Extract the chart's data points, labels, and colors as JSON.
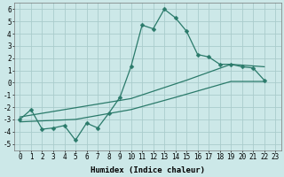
{
  "xlabel": "Humidex (Indice chaleur)",
  "background_color": "#cce8e8",
  "grid_color": "#aacccc",
  "line_color": "#2a7a6a",
  "xlim": [
    -0.5,
    23.5
  ],
  "ylim": [
    -5.5,
    6.5
  ],
  "xticks": [
    0,
    1,
    2,
    3,
    4,
    5,
    6,
    7,
    8,
    9,
    10,
    11,
    12,
    13,
    14,
    15,
    16,
    17,
    18,
    19,
    20,
    21,
    22,
    23
  ],
  "yticks": [
    -5,
    -4,
    -3,
    -2,
    -1,
    0,
    1,
    2,
    3,
    4,
    5,
    6
  ],
  "main_x": [
    0,
    1,
    2,
    3,
    4,
    5,
    6,
    7,
    8,
    9,
    10,
    11,
    12,
    13,
    14,
    15,
    16,
    17,
    18,
    19,
    20,
    21,
    22
  ],
  "main_y": [
    -3.0,
    -2.2,
    -3.8,
    -3.7,
    -3.5,
    -4.7,
    -3.3,
    -3.7,
    -2.5,
    -1.2,
    1.3,
    4.7,
    4.4,
    6.0,
    5.3,
    4.2,
    2.3,
    2.1,
    1.5,
    1.5,
    1.3,
    1.2,
    0.2
  ],
  "upper_x": [
    0,
    10,
    15,
    19,
    22
  ],
  "upper_y": [
    -2.8,
    -1.3,
    0.2,
    1.5,
    1.3
  ],
  "lower_x": [
    0,
    5,
    10,
    14,
    19,
    22
  ],
  "lower_y": [
    -3.2,
    -3.0,
    -2.2,
    -1.2,
    0.1,
    0.1
  ],
  "marker_size": 2.5,
  "tick_fontsize": 5.5,
  "xlabel_fontsize": 6.5
}
